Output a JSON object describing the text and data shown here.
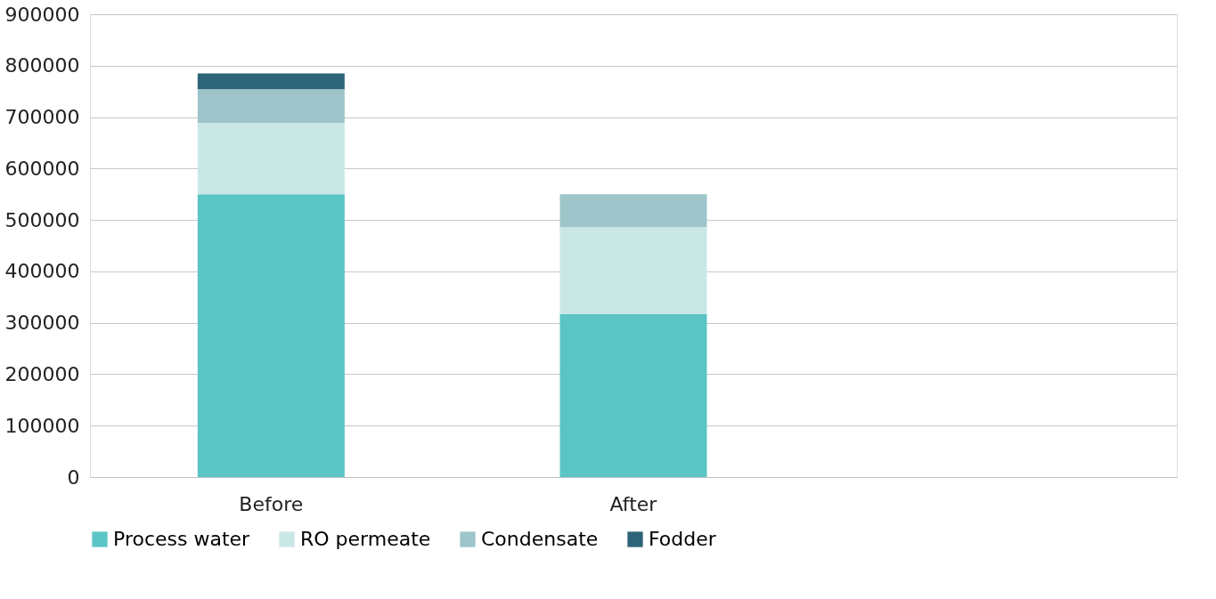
{
  "chart_data": {
    "type": "bar",
    "stacked": true,
    "categories": [
      "Before",
      "After",
      null
    ],
    "series": [
      {
        "name": "Process water",
        "color": "#5bc5c6",
        "values": [
          550000,
          317000,
          null
        ]
      },
      {
        "name": "RO permeate",
        "color": "#c9e8e5",
        "values": [
          139000,
          169000,
          null
        ]
      },
      {
        "name": "Condensate",
        "color": "#9ec5c9",
        "values": [
          65000,
          64000,
          null
        ]
      },
      {
        "name": "Fodder",
        "color": "#2e6479",
        "values": [
          31000,
          0,
          null
        ]
      }
    ],
    "ylim": [
      0,
      900000
    ],
    "yticks": [
      0,
      100000,
      200000,
      300000,
      400000,
      500000,
      600000,
      700000,
      800000,
      900000
    ],
    "grid": "y",
    "legend": "bottom"
  }
}
